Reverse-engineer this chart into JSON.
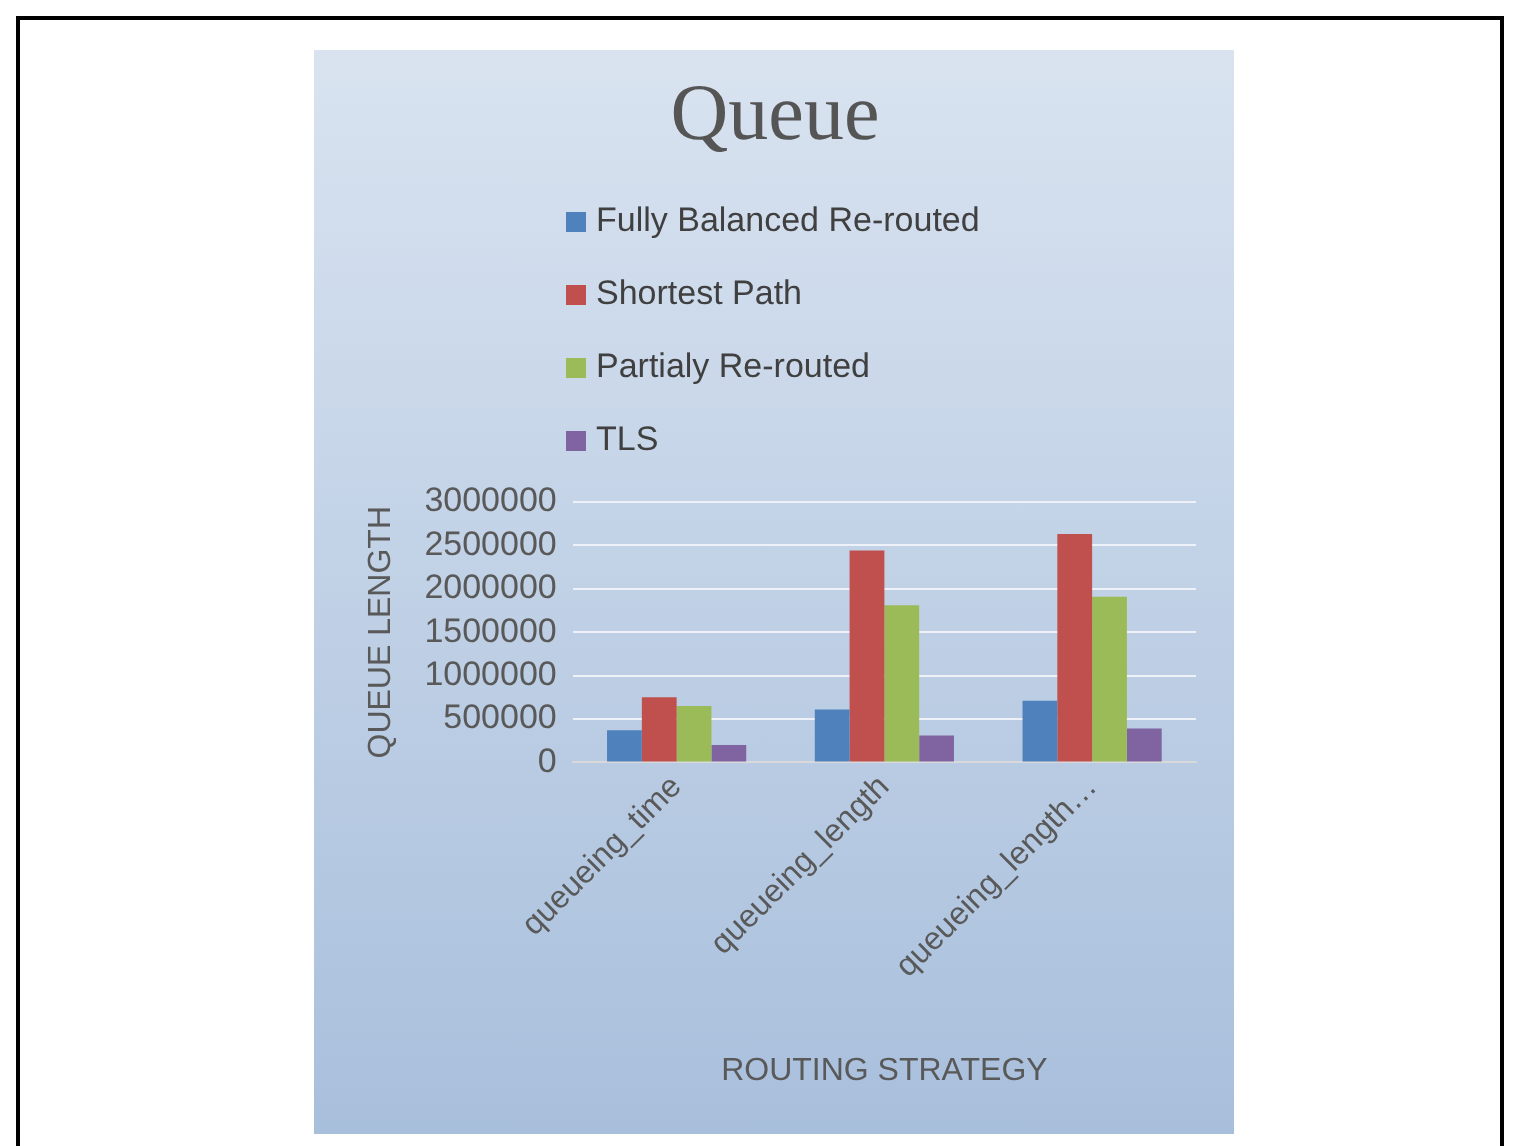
{
  "chart_data": {
    "type": "bar",
    "title": "Queue",
    "xlabel": "ROUTING STRATEGY",
    "ylabel": "QUEUE LENGTH",
    "categories": [
      "queueing_time",
      "queueing_length",
      "queueing_length…"
    ],
    "series": [
      {
        "name": "Fully Balanced Re-routed",
        "color": "#4f81bd",
        "values": [
          370000,
          610000,
          710000
        ]
      },
      {
        "name": "Shortest Path",
        "color": "#c0504d",
        "values": [
          750000,
          2440000,
          2630000
        ]
      },
      {
        "name": "Partialy Re-routed",
        "color": "#9bbb59",
        "values": [
          650000,
          1810000,
          1910000
        ]
      },
      {
        "name": "TLS",
        "color": "#8064a2",
        "values": [
          200000,
          310000,
          390000
        ]
      }
    ],
    "ylim": [
      0,
      3000000
    ],
    "yticks": [
      0,
      500000,
      1000000,
      1500000,
      2000000,
      2500000,
      3000000
    ],
    "grid": "y",
    "legend": "top"
  }
}
